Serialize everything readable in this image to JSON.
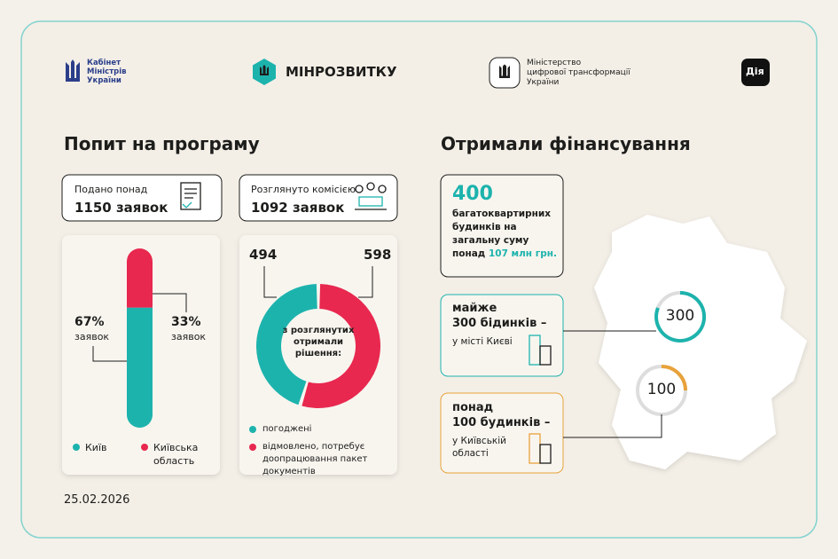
{
  "header": {
    "cabinet": [
      "Кабінет",
      "Міністрів",
      "України"
    ],
    "minrozvytku": "МІНРОЗВИТКУ",
    "mintsyfra": [
      "Міністерство",
      "цифрової трансформації",
      "України"
    ],
    "diia": "Дія"
  },
  "demand": {
    "title": "Попит на програму",
    "submitted": {
      "label": "Подано понад",
      "value": "1150 заявок"
    },
    "reviewed": {
      "label": "Розглянуто комісією",
      "value": "1092 заявок"
    }
  },
  "chart_data": [
    {
      "type": "bar",
      "unit": "заявок",
      "series": [
        {
          "name": "Київ",
          "color": "#1db3ad",
          "values": [
            67
          ],
          "value_labels": [
            "67%"
          ]
        },
        {
          "name": "Київська область",
          "color": "#e8284f",
          "values": [
            33
          ],
          "value_labels": [
            "33%"
          ]
        }
      ]
    },
    {
      "type": "pie",
      "center_text": "з розглянутих отримали рішення:",
      "categories": [
        "погоджені",
        "відмовлено, потребує доопрацювання пакет документів"
      ],
      "values": [
        494,
        598
      ],
      "colors": [
        "#1db3ad",
        "#e8284f"
      ]
    }
  ],
  "funding": {
    "title": "Отримали фінансування",
    "total": {
      "value": "400",
      "text": "багатоквартирних будинків на загальну суму понад",
      "amount": "107 млн грн."
    },
    "city": {
      "prefix": "майже",
      "value": "300 бідинків –",
      "place": "у місті Києві",
      "map_label": "300"
    },
    "region": {
      "prefix": "понад",
      "value": "100 будинків –",
      "place": "у Київській області",
      "map_label": "100"
    }
  },
  "date": "25.02.2026"
}
